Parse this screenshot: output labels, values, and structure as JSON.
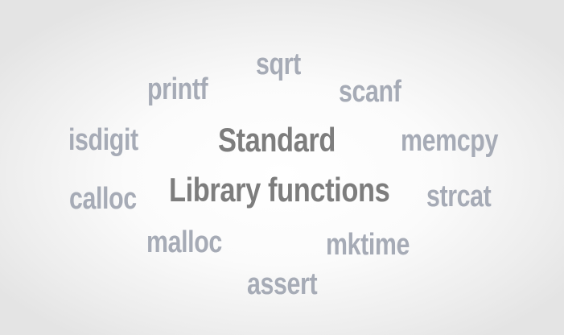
{
  "title": {
    "line1": "Standard",
    "line2": "Library functions"
  },
  "functions": {
    "sqrt": "sqrt",
    "printf": "printf",
    "scanf": "scanf",
    "isdigit": "isdigit",
    "memcpy": "memcpy",
    "calloc": "calloc",
    "strcat": "strcat",
    "malloc": "malloc",
    "mktime": "mktime",
    "assert": "assert"
  },
  "colors": {
    "function_word": "#a6abb6",
    "title_word": "#7d7d7d",
    "background_center": "#ffffff",
    "background_edge": "#e4e4e4"
  }
}
